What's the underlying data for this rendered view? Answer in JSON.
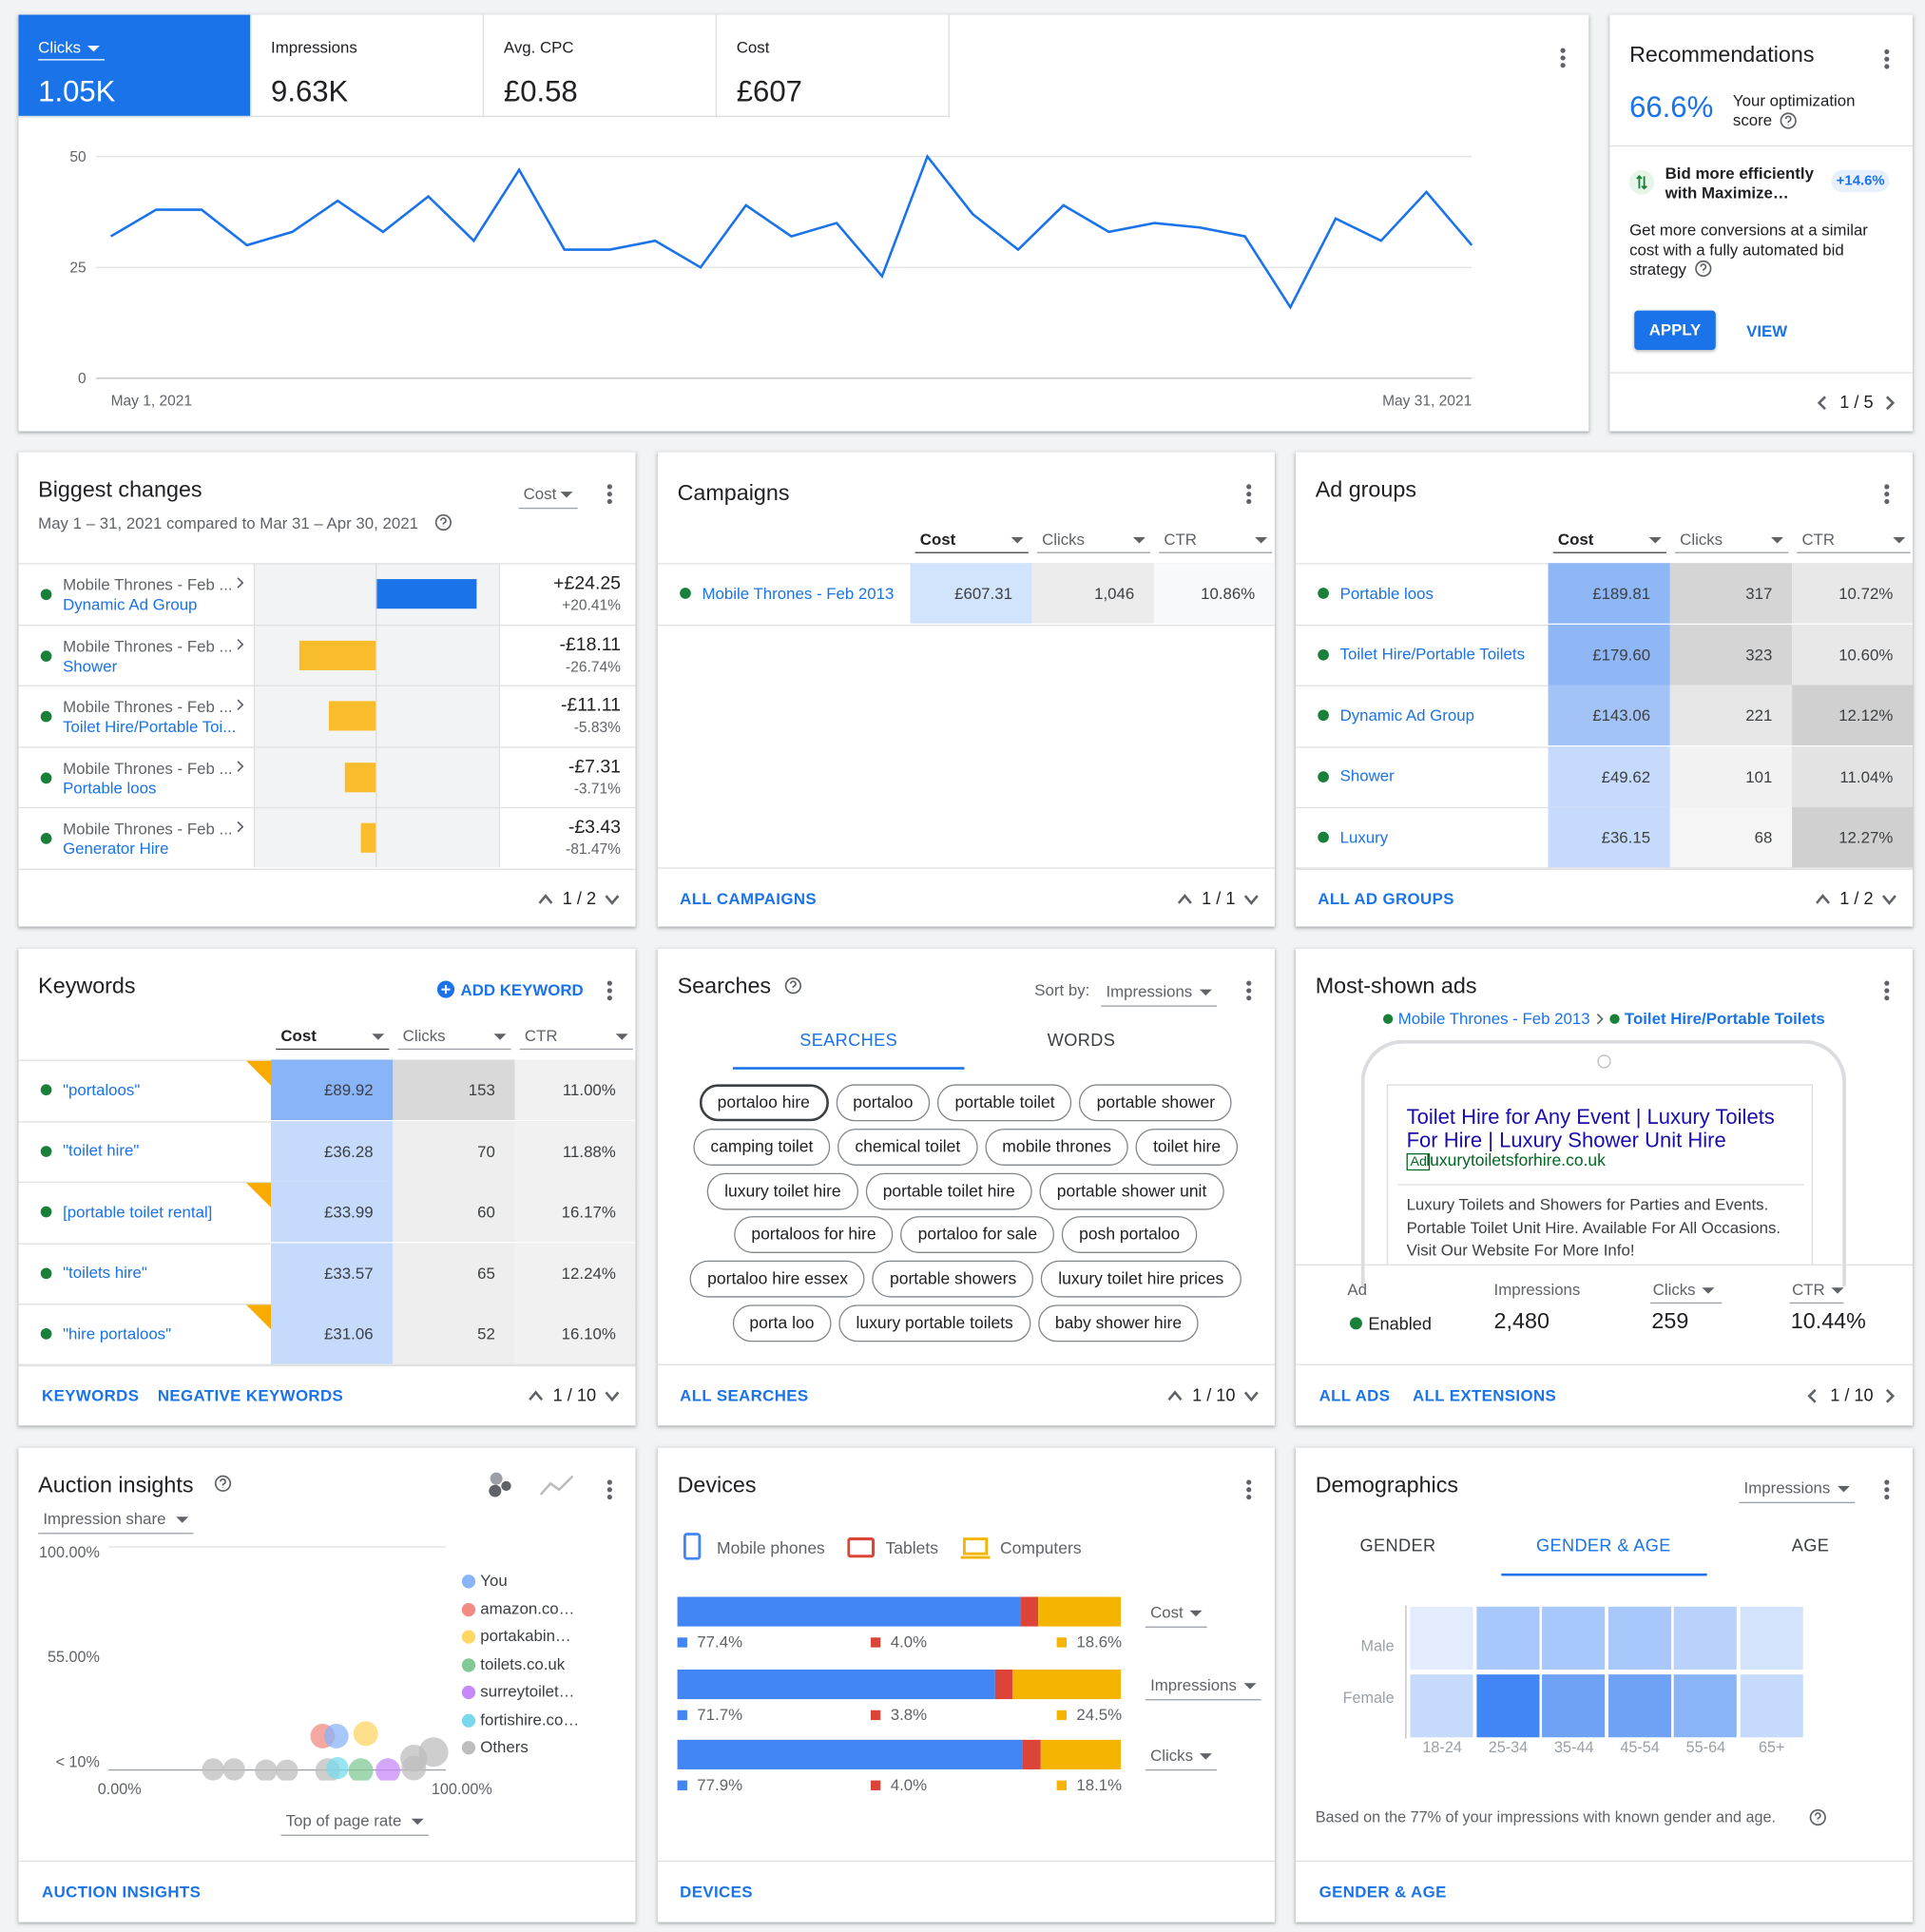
{
  "performance": {
    "metrics": [
      {
        "label": "Clicks",
        "value": "1.05K"
      },
      {
        "label": "Impressions",
        "value": "9.63K"
      },
      {
        "label": "Avg. CPC",
        "value": "£0.58"
      },
      {
        "label": "Cost",
        "value": "£607"
      }
    ],
    "chart": {
      "type": "line",
      "color": "#1a73e8",
      "categories": [
        "May 1, 2021",
        null,
        null,
        null,
        null,
        null,
        null,
        null,
        null,
        null,
        null,
        null,
        null,
        null,
        null,
        null,
        null,
        null,
        null,
        null,
        null,
        null,
        null,
        null,
        null,
        null,
        null,
        null,
        null,
        null,
        "May 31, 2021"
      ],
      "values": [
        32,
        38,
        38,
        30,
        33,
        40,
        33,
        41,
        31,
        47,
        29,
        29,
        31,
        25,
        39,
        32,
        35,
        23,
        50,
        37,
        29,
        39,
        33,
        35,
        34,
        32,
        16,
        36,
        31,
        42,
        30
      ],
      "ylim": [
        0,
        50
      ],
      "yticks": [
        0,
        25,
        50
      ],
      "grid": true
    }
  },
  "recommendations": {
    "title": "Recommendations",
    "score": "66.6%",
    "score_label": "Your optimization score",
    "item_title": "Bid more efficiently with Maximize…",
    "uplift": "+14.6%",
    "description": "Get more conversions at a similar cost with a fully automated bid strategy",
    "actions": [
      "APPLY",
      "VIEW"
    ],
    "pager": "1 / 5"
  },
  "biggest_changes": {
    "title": "Biggest changes",
    "metric": "Cost",
    "period": "May 1 – 31, 2021 compared to Mar 31 – Apr 30, 2021",
    "rows": [
      {
        "campaign": "Mobile Thrones - Feb ...",
        "name": "Dynamic Ad Group",
        "change": 24.25,
        "change_label": "+£24.25",
        "percent": "+20.41%"
      },
      {
        "campaign": "Mobile Thrones - Feb ...",
        "name": "Shower",
        "change": -18.11,
        "change_label": "-£18.11",
        "percent": "-26.74%"
      },
      {
        "campaign": "Mobile Thrones - Feb ...",
        "name": "Toilet Hire/Portable Toi...",
        "change": -11.11,
        "change_label": "-£11.11",
        "percent": "-5.83%"
      },
      {
        "campaign": "Mobile Thrones - Feb ...",
        "name": "Portable loos",
        "change": -7.31,
        "change_label": "-£7.31",
        "percent": "-3.71%"
      },
      {
        "campaign": "Mobile Thrones - Feb ...",
        "name": "Generator Hire",
        "change": -3.43,
        "change_label": "-£3.43",
        "percent": "-81.47%"
      }
    ],
    "pager": "1 / 2"
  },
  "campaigns": {
    "title": "Campaigns",
    "columns": [
      "Cost",
      "Clicks",
      "CTR"
    ],
    "rows": [
      {
        "name": "Mobile Thrones - Feb 2013",
        "cells": [
          "£607.31",
          "1,046",
          "10.86%"
        ]
      }
    ],
    "link": "ALL CAMPAIGNS",
    "pager": "1 / 1"
  },
  "ad_groups": {
    "title": "Ad groups",
    "columns": [
      "Cost",
      "Clicks",
      "CTR"
    ],
    "rows": [
      {
        "name": "Portable loos",
        "cells": [
          "£189.81",
          "317",
          "10.72%"
        ]
      },
      {
        "name": "Toilet Hire/Portable Toilets",
        "cells": [
          "£179.60",
          "323",
          "10.60%"
        ]
      },
      {
        "name": "Dynamic Ad Group",
        "cells": [
          "£143.06",
          "221",
          "12.12%"
        ]
      },
      {
        "name": "Shower",
        "cells": [
          "£49.62",
          "101",
          "11.04%"
        ]
      },
      {
        "name": "Luxury",
        "cells": [
          "£36.15",
          "68",
          "12.27%"
        ]
      }
    ],
    "link": "ALL AD GROUPS",
    "pager": "1 / 2"
  },
  "keywords": {
    "title": "Keywords",
    "action": "ADD KEYWORD",
    "columns": [
      "Cost",
      "Clicks",
      "CTR"
    ],
    "rows": [
      {
        "name": "\"portaloos\"",
        "cells": [
          "£89.92",
          "153",
          "11.00%"
        ]
      },
      {
        "name": "\"toilet hire\"",
        "cells": [
          "£36.28",
          "70",
          "11.88%"
        ]
      },
      {
        "name": "[portable toilet rental]",
        "cells": [
          "£33.99",
          "60",
          "16.17%"
        ]
      },
      {
        "name": "\"toilets hire\"",
        "cells": [
          "£33.57",
          "65",
          "12.24%"
        ]
      },
      {
        "name": "\"hire portaloos\"",
        "cells": [
          "£31.06",
          "52",
          "16.10%"
        ]
      }
    ],
    "links": [
      "KEYWORDS",
      "NEGATIVE KEYWORDS"
    ],
    "pager": "1 / 10"
  },
  "searches": {
    "title": "Searches",
    "sort_label": "Sort by:",
    "sort": "Impressions",
    "tabs": [
      "SEARCHES",
      "WORDS"
    ],
    "chips": [
      [
        "portaloo hire",
        "portaloo",
        "portable toilet",
        "portable shower"
      ],
      [
        "camping toilet",
        "chemical toilet",
        "mobile thrones",
        "toilet hire"
      ],
      [
        "luxury toilet hire",
        "portable toilet hire",
        "portable shower unit"
      ],
      [
        "portaloos for hire",
        "portaloo for sale",
        "posh portaloo"
      ],
      [
        "portaloo hire essex",
        "portable showers",
        "luxury toilet hire prices"
      ],
      [
        "porta loo",
        "luxury portable toilets",
        "baby shower hire"
      ]
    ],
    "link": "ALL SEARCHES",
    "pager": "1 / 10"
  },
  "most_shown_ads": {
    "title": "Most-shown ads",
    "campaign": "Mobile Thrones - Feb 2013",
    "ad_group": "Toilet Hire/Portable Toilets",
    "ad": {
      "headline": "Toilet Hire for Any Event | Luxury Toilets For Hire | Luxury Shower Unit Hire",
      "badge": "Ad",
      "url": "luxurytoiletsforhire.co.uk",
      "description": "Luxury Toilets and Showers for Parties and Events. Portable Toilet Unit Hire. Available For All Occasions. Visit Our Website For More Info!"
    },
    "stats": [
      {
        "label": "Ad",
        "value": "Enabled"
      },
      {
        "label": "Impressions",
        "value": "2,480"
      },
      {
        "label": "Clicks",
        "value": "259"
      },
      {
        "label": "CTR",
        "value": "10.44%"
      }
    ],
    "links": [
      "ALL ADS",
      "ALL EXTENSIONS"
    ],
    "pager": "1 / 10"
  },
  "auction_insights": {
    "title": "Auction insights",
    "metric": "Impression share",
    "y_labels": [
      "100.00%",
      "55.00%",
      "< 10%"
    ],
    "x_labels": [
      "0.00%",
      "100.00%"
    ],
    "x_metric": "Top of page rate",
    "legend": [
      {
        "name": "You",
        "color": "#8ab4f8"
      },
      {
        "name": "amazon.co…",
        "color": "#f28b82"
      },
      {
        "name": "portakabin…",
        "color": "#fdd663"
      },
      {
        "name": "toilets.co.uk",
        "color": "#81c995"
      },
      {
        "name": "surreytoilet…",
        "color": "#c58af9"
      },
      {
        "name": "fortishire.co…",
        "color": "#78d9ec"
      },
      {
        "name": "Others",
        "color": "#bdbdbd"
      }
    ],
    "link": "AUCTION INSIGHTS"
  },
  "devices": {
    "title": "Devices",
    "legend": [
      {
        "name": "Mobile phones",
        "color": "#4285f4"
      },
      {
        "name": "Tablets",
        "color": "#db4437"
      },
      {
        "name": "Computers",
        "color": "#f4b400"
      }
    ],
    "metrics": [
      {
        "name": "Cost",
        "values": [
          77.4,
          4.0,
          18.6
        ],
        "value_labels": [
          "77.4%",
          "4.0%",
          "18.6%"
        ]
      },
      {
        "name": "Impressions",
        "values": [
          71.7,
          3.8,
          24.5
        ],
        "value_labels": [
          "71.7%",
          "3.8%",
          "24.5%"
        ]
      },
      {
        "name": "Clicks",
        "values": [
          77.9,
          4.0,
          18.1
        ],
        "value_labels": [
          "77.9%",
          "4.0%",
          "18.1%"
        ]
      }
    ],
    "link": "DEVICES"
  },
  "demographics": {
    "title": "Demographics",
    "metric": "Impressions",
    "tabs": [
      "GENDER",
      "GENDER & AGE",
      "AGE"
    ],
    "rows": [
      "Male",
      "Female"
    ],
    "columns": [
      "18-24",
      "25-34",
      "35-44",
      "45-54",
      "55-64",
      "65+"
    ],
    "note": "Based on the 77% of your impressions with known gender and age.",
    "link": "GENDER & AGE"
  }
}
